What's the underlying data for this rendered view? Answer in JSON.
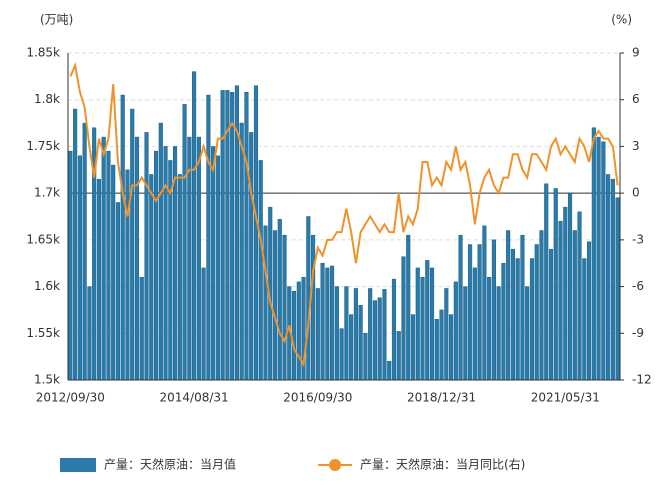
{
  "chart_data": {
    "type": "bar-line",
    "y_unit": "(万吨)",
    "y2_unit": "(%)",
    "categories": [
      "2012/09/30",
      null,
      null,
      null,
      null,
      null,
      null,
      null,
      null,
      null,
      null,
      null,
      null,
      null,
      null,
      null,
      null,
      null,
      null,
      null,
      null,
      null,
      null,
      null,
      null,
      null,
      "2014/08/31",
      null,
      null,
      null,
      null,
      null,
      null,
      null,
      null,
      null,
      null,
      null,
      null,
      null,
      null,
      null,
      null,
      null,
      null,
      null,
      null,
      null,
      null,
      null,
      null,
      null,
      "2016/09/30",
      null,
      null,
      null,
      null,
      null,
      null,
      null,
      null,
      null,
      null,
      null,
      null,
      null,
      null,
      null,
      null,
      null,
      null,
      null,
      null,
      null,
      null,
      null,
      null,
      null,
      "2018/12/31",
      null,
      null,
      null,
      null,
      null,
      null,
      null,
      null,
      null,
      null,
      null,
      null,
      null,
      null,
      null,
      null,
      null,
      null,
      null,
      null,
      null,
      null,
      null,
      null,
      null,
      "2021/05/31",
      null,
      null,
      null,
      null,
      null,
      null,
      null,
      null,
      null,
      null,
      null
    ],
    "series": [
      {
        "name": "产量：天然原油：当月值",
        "color": "#2a7ba9",
        "axis": "y",
        "values": [
          1745,
          1790,
          1740,
          1775,
          1600,
          1770,
          1715,
          1760,
          1745,
          1730,
          1690,
          1805,
          1725,
          1790,
          1760,
          1610,
          1765,
          1720,
          1745,
          1775,
          1750,
          1735,
          1750,
          1720,
          1795,
          1760,
          1830,
          1760,
          1620,
          1805,
          1750,
          1740,
          1810,
          1810,
          1808,
          1815,
          1775,
          1808,
          1765,
          1815,
          1735,
          1665,
          1685,
          1660,
          1672,
          1655,
          1600,
          1595,
          1605,
          1610,
          1675,
          1655,
          1598,
          1625,
          1620,
          1622,
          1600,
          1555,
          1600,
          1570,
          1598,
          1580,
          1550,
          1598,
          1585,
          1588,
          1597,
          1520,
          1608,
          1552,
          1632,
          1655,
          1570,
          1620,
          1610,
          1628,
          1620,
          1565,
          1575,
          1598,
          1570,
          1605,
          1655,
          1600,
          1645,
          1620,
          1645,
          1665,
          1610,
          1650,
          1600,
          1625,
          1660,
          1640,
          1630,
          1655,
          1600,
          1630,
          1645,
          1660,
          1710,
          1640,
          1705,
          1670,
          1685,
          1700,
          1660,
          1680,
          1630,
          1648,
          1770,
          1760,
          1755,
          1720,
          1715,
          1695
        ]
      },
      {
        "name": "产量：天然原油：当月同比(右)",
        "color": "#f0922b",
        "axis": "y2",
        "values": [
          7.5,
          8.2,
          6.5,
          5.5,
          3.0,
          1.0,
          3.5,
          2.5,
          3.5,
          7.0,
          2.0,
          0,
          -1.5,
          0.5,
          0.5,
          1,
          0.5,
          0,
          -0.5,
          0,
          0.5,
          0,
          1,
          1,
          1,
          1.5,
          1.5,
          2,
          3,
          2,
          1.5,
          3.5,
          3.5,
          4,
          4.5,
          4,
          3,
          2,
          0,
          -1.5,
          -3,
          -5,
          -7,
          -8,
          -9,
          -9.5,
          -8.5,
          -10,
          -10.5,
          -11,
          -8.5,
          -5,
          -3.5,
          -4,
          -3,
          -3,
          -2.5,
          -2.5,
          -1,
          -2.5,
          -4.5,
          -2.5,
          -2,
          -1.5,
          -2,
          -2.5,
          -2,
          -2.5,
          -2.5,
          0,
          -2.5,
          -1.5,
          -2,
          -1,
          2,
          2,
          0.5,
          1,
          0.5,
          2,
          1.5,
          3,
          1.5,
          2,
          0.5,
          -2,
          0,
          1,
          1.5,
          0.5,
          0,
          1,
          1,
          2.5,
          2.5,
          1.5,
          1,
          2.5,
          2.5,
          2,
          1.5,
          3,
          3.5,
          2.5,
          3,
          2.5,
          2,
          3.5,
          3,
          2,
          3.5,
          4,
          3.5,
          3.5,
          3,
          0.5
        ]
      }
    ],
    "ylim": [
      1500,
      1850
    ],
    "yticks": [
      {
        "value": 1500,
        "label": "1.5k"
      },
      {
        "value": 1550,
        "label": "1.55k"
      },
      {
        "value": 1600,
        "label": "1.6k"
      },
      {
        "value": 1650,
        "label": "1.65k"
      },
      {
        "value": 1700,
        "label": "1.7k"
      },
      {
        "value": 1750,
        "label": "1.75k"
      },
      {
        "value": 1800,
        "label": "1.8k"
      },
      {
        "value": 1850,
        "label": "1.85k"
      }
    ],
    "y2lim": [
      -12,
      9
    ],
    "y2ticks": [
      -12,
      -9,
      -6,
      -3,
      0,
      3,
      6,
      9
    ],
    "grid": true
  }
}
